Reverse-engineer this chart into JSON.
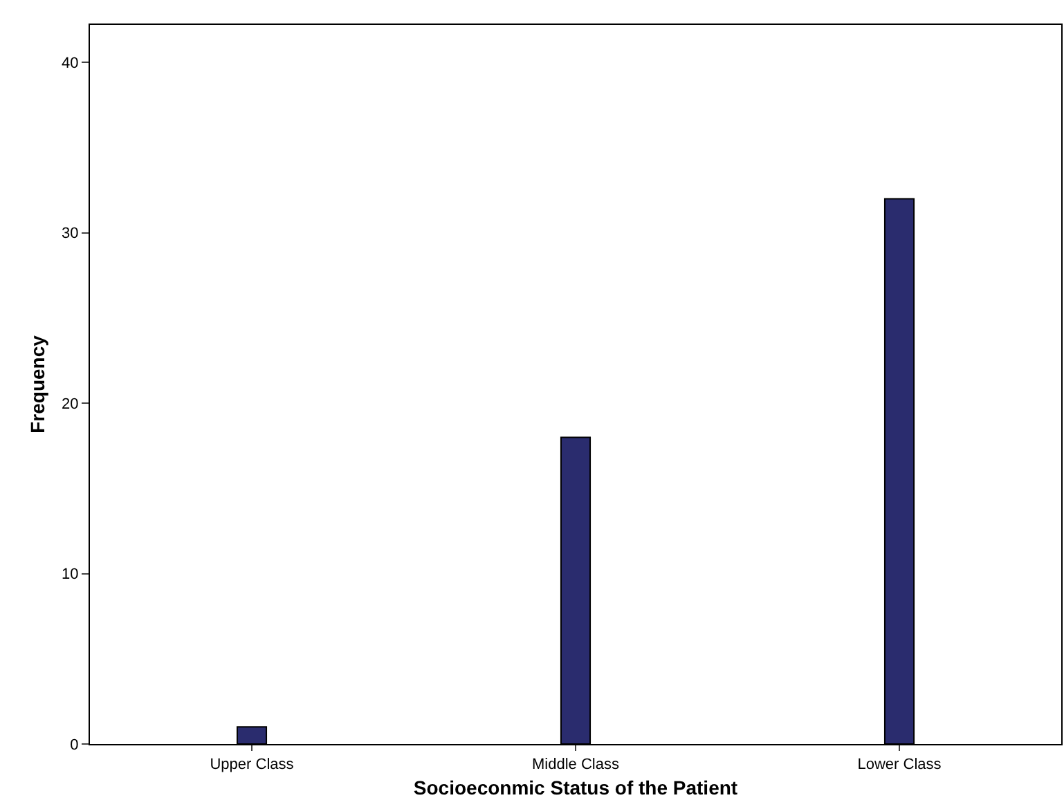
{
  "chart_data": {
    "type": "bar",
    "xlabel": "Socioeconmic Status of the Patient",
    "ylabel": "Frequency",
    "categories": [
      "Upper Class",
      "Middle Class",
      "Lower Class"
    ],
    "values": [
      1,
      18,
      32
    ],
    "color": "#2a2c6e",
    "ylim": [
      0,
      42.2
    ],
    "yticks": [
      0,
      10,
      20,
      30,
      40
    ],
    "legend": false
  }
}
